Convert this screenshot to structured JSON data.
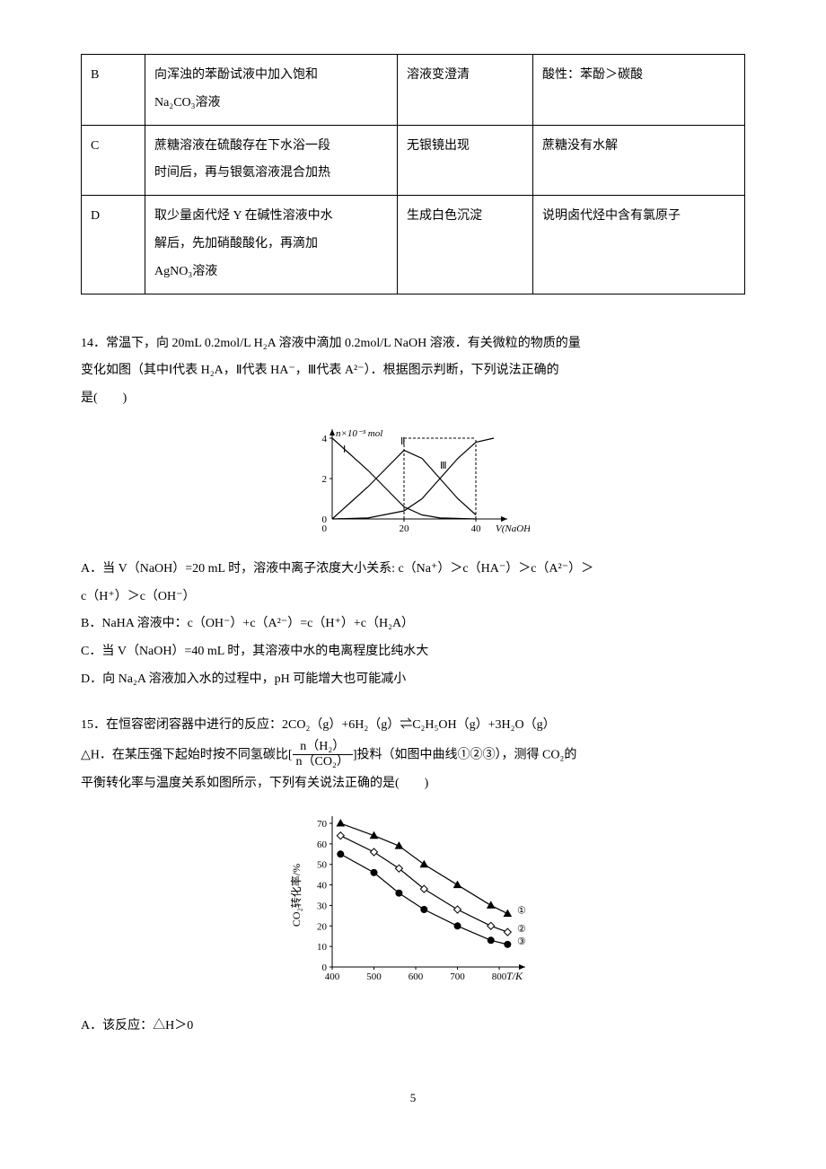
{
  "table": {
    "rows": [
      {
        "label": "B",
        "operation": "向浑浊的苯酚试液中加入饱和\nNa₂CO₃溶液",
        "phenomenon": "溶液变澄清",
        "conclusion": "酸性：苯酚＞碳酸"
      },
      {
        "label": "C",
        "operation": "蔗糖溶液在硫酸存在下水浴一段\n时间后，再与银氨溶液混合加热",
        "phenomenon": "无银镜出现",
        "conclusion": "蔗糖没有水解"
      },
      {
        "label": "D",
        "operation": "取少量卤代烃 Y 在碱性溶液中水\n解后，先加硝酸酸化，再滴加\nAgNO₃溶液",
        "phenomenon": "生成白色沉淀",
        "conclusion": "说明卤代烃中含有氯原子"
      }
    ]
  },
  "q14": {
    "stem_a": "14．常温下，向 20mL 0.2mol/L H₂A 溶液中滴加 0.2mol/L NaOH 溶液．有关微粒的物质的量",
    "stem_b": "变化如图（其中Ⅰ代表 H₂A，Ⅱ代表 HA⁻，Ⅲ代表 A²⁻）．根据图示判断，下列说法正确的",
    "stem_c": "是(　　)",
    "chart": {
      "y_label": "n×10⁻³ mol",
      "x_label": "V(NaOH)",
      "y_ticks": [
        0,
        2,
        4
      ],
      "x_ticks": [
        0,
        20,
        40
      ],
      "curve_labels": [
        "Ⅰ",
        "Ⅱ",
        "Ⅲ"
      ],
      "curves": {
        "I": [
          [
            0,
            4.0
          ],
          [
            5,
            3.2
          ],
          [
            10,
            2.4
          ],
          [
            15,
            1.5
          ],
          [
            20,
            0.6
          ],
          [
            25,
            0.2
          ],
          [
            30,
            0.05
          ],
          [
            40,
            0
          ]
        ],
        "II": [
          [
            0,
            0
          ],
          [
            5,
            0.8
          ],
          [
            10,
            1.6
          ],
          [
            15,
            2.5
          ],
          [
            20,
            3.4
          ],
          [
            25,
            3.0
          ],
          [
            30,
            2.0
          ],
          [
            35,
            1.0
          ],
          [
            40,
            0.2
          ]
        ],
        "III": [
          [
            0,
            0
          ],
          [
            10,
            0.05
          ],
          [
            20,
            0.4
          ],
          [
            25,
            1.0
          ],
          [
            30,
            2.0
          ],
          [
            35,
            3.0
          ],
          [
            40,
            3.8
          ],
          [
            45,
            4.0
          ]
        ]
      },
      "stroke": "#000000",
      "bg": "#ffffff"
    },
    "optA": "A．当 V（NaOH）=20 mL 时，溶液中离子浓度大小关系: c（Na⁺）＞c（HA⁻）＞c（A²⁻）＞",
    "optA2": "c（H⁺）＞c（OH⁻）",
    "optB": "B．NaHA 溶液中：c（OH⁻）+c（A²⁻）=c（H⁺）+c（H₂A）",
    "optC": "C．当 V（NaOH）=40 mL 时，其溶液中水的电离程度比纯水大",
    "optD": "D．向 Na₂A 溶液加入水的过程中，pH 可能增大也可能减小"
  },
  "q15": {
    "stem_a": "15．在恒容密闭容器中进行的反应：2CO₂（g）+6H₂（g）⇌C₂H₅OH（g）+3H₂O（g）",
    "frac_num": "n（H₂）",
    "frac_den": "n（CO₂）",
    "stem_b_pre": "△H．在某压强下起始时按不同氢碳比[",
    "stem_b_post": "]投料（如图中曲线①②③），测得 CO₂的",
    "stem_c": "平衡转化率与温度关系如图所示，下列有关说法正确的是(　　)",
    "chart": {
      "y_label": "CO₂转化率/%",
      "x_label": "T/K",
      "y_ticks": [
        0,
        10,
        20,
        30,
        40,
        50,
        60,
        70
      ],
      "x_ticks": [
        400,
        500,
        600,
        700,
        800
      ],
      "legend": [
        "①",
        "②",
        "③"
      ],
      "series": {
        "s1": {
          "marker": "triangle",
          "fill": "#000000",
          "points": [
            [
              420,
              70
            ],
            [
              500,
              64
            ],
            [
              560,
              59
            ],
            [
              620,
              50
            ],
            [
              700,
              40
            ],
            [
              780,
              30
            ],
            [
              820,
              26
            ]
          ]
        },
        "s2": {
          "marker": "diamond",
          "fill": "#ffffff",
          "points": [
            [
              420,
              64
            ],
            [
              500,
              56
            ],
            [
              560,
              48
            ],
            [
              620,
              38
            ],
            [
              700,
              28
            ],
            [
              780,
              20
            ],
            [
              820,
              17
            ]
          ]
        },
        "s3": {
          "marker": "circle",
          "fill": "#000000",
          "points": [
            [
              420,
              55
            ],
            [
              500,
              46
            ],
            [
              560,
              36
            ],
            [
              620,
              28
            ],
            [
              700,
              20
            ],
            [
              780,
              13
            ],
            [
              820,
              11
            ]
          ]
        }
      },
      "stroke": "#000000",
      "bg": "#ffffff"
    },
    "optA": "A．该反应：△H＞0"
  },
  "page_number": "5"
}
